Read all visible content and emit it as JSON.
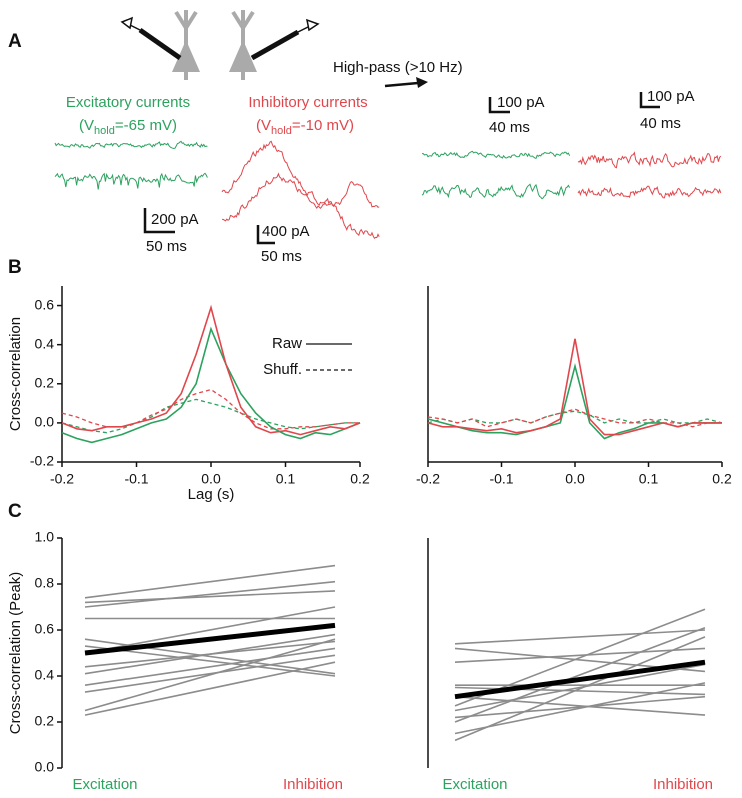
{
  "panel_labels": [
    "A",
    "B",
    "C"
  ],
  "panel_a": {
    "high_pass": "High-pass (>10 Hz)",
    "excitatory": {
      "title": "Excitatory currents",
      "prefix": "(V",
      "subscript": "hold",
      "suffix": "=-65 mV)"
    },
    "inhibitory": {
      "title": "Inhibitory currents",
      "prefix": "(V",
      "subscript": "hold",
      "suffix": "=-10 mV)"
    },
    "scale_bars": [
      {
        "amplitude": "200 pA",
        "time": "50 ms"
      },
      {
        "amplitude": "400 pA",
        "time": "50 ms"
      },
      {
        "amplitude": "100 pA",
        "time": "40 ms"
      },
      {
        "amplitude": "100 pA",
        "time": "40 ms"
      }
    ]
  },
  "chart_data": [
    {
      "type": "line",
      "y_label": "Cross-correlation",
      "x_label": "Lag (s)",
      "x": [
        -0.2,
        -0.18,
        -0.16,
        -0.14,
        -0.12,
        -0.1,
        -0.08,
        -0.06,
        -0.04,
        -0.02,
        0,
        0.02,
        0.04,
        0.06,
        0.08,
        0.1,
        0.12,
        0.14,
        0.16,
        0.18,
        0.2
      ],
      "xlim": [
        -0.2,
        0.2
      ],
      "xticks": [
        -0.2,
        -0.1,
        {
          "value": 0,
          "label": "0.0"
        },
        0.1,
        0.2
      ],
      "ylim": [
        -0.2,
        0.7
      ],
      "yticks": [
        -0.2,
        {
          "value": 0,
          "label": "0.0"
        },
        0.2,
        0.4,
        0.6
      ],
      "legend": [
        {
          "label": "Raw",
          "dash": false
        },
        {
          "label": "Shuff.",
          "dash": true
        }
      ],
      "series": [
        {
          "color": "#2ca25f",
          "dash": true,
          "values": [
            0.0,
            -0.02,
            -0.04,
            -0.05,
            -0.03,
            0.0,
            0.03,
            0.08,
            0.1,
            0.12,
            0.1,
            0.08,
            0.05,
            0.02,
            0.0,
            -0.02,
            -0.03,
            -0.02,
            -0.01,
            0.0,
            0.0
          ]
        },
        {
          "color": "#e0474c",
          "dash": true,
          "values": [
            0.05,
            0.03,
            0.0,
            -0.02,
            -0.02,
            0.0,
            0.04,
            0.07,
            0.12,
            0.15,
            0.17,
            0.12,
            0.05,
            0.0,
            -0.03,
            -0.03,
            -0.02,
            -0.02,
            -0.01,
            0.0,
            0.0
          ]
        },
        {
          "color": "#2ca25f",
          "dash": false,
          "values": [
            -0.05,
            -0.08,
            -0.1,
            -0.08,
            -0.06,
            -0.03,
            0.0,
            0.02,
            0.08,
            0.2,
            0.48,
            0.3,
            0.15,
            0.05,
            -0.02,
            -0.06,
            -0.08,
            -0.05,
            -0.06,
            -0.03,
            0.0
          ]
        },
        {
          "color": "#e0474c",
          "dash": false,
          "values": [
            0.0,
            -0.03,
            -0.04,
            -0.02,
            -0.02,
            0.0,
            0.02,
            0.05,
            0.15,
            0.35,
            0.59,
            0.3,
            0.08,
            -0.02,
            -0.05,
            -0.04,
            -0.06,
            -0.04,
            -0.02,
            -0.03,
            0.0
          ]
        }
      ]
    },
    {
      "type": "line",
      "x": [
        -0.2,
        -0.18,
        -0.16,
        -0.14,
        -0.12,
        -0.1,
        -0.08,
        -0.06,
        -0.04,
        -0.02,
        0,
        0.02,
        0.04,
        0.06,
        0.08,
        0.1,
        0.12,
        0.14,
        0.16,
        0.18,
        0.2
      ],
      "xlim": [
        -0.2,
        0.2
      ],
      "xticks": [
        -0.2,
        -0.1,
        {
          "value": 0,
          "label": "0.0"
        },
        0.1,
        0.2
      ],
      "ylim": [
        -0.2,
        0.7
      ],
      "series": [
        {
          "color": "#2ca25f",
          "dash": true,
          "values": [
            0.0,
            0.02,
            0.0,
            0.02,
            0.0,
            0.0,
            0.02,
            0.0,
            0.03,
            0.05,
            0.06,
            0.04,
            0.0,
            0.02,
            0.0,
            0.0,
            0.02,
            0.0,
            0.0,
            0.02,
            0.0
          ]
        },
        {
          "color": "#e0474c",
          "dash": true,
          "values": [
            0.03,
            0.02,
            0.0,
            0.02,
            -0.02,
            0.0,
            0.02,
            0.0,
            0.03,
            0.05,
            0.07,
            0.04,
            0.02,
            0.0,
            0.0,
            0.02,
            0.0,
            0.0,
            -0.02,
            0.0,
            0.0
          ]
        },
        {
          "color": "#2ca25f",
          "dash": false,
          "values": [
            0.02,
            0.0,
            -0.02,
            -0.04,
            -0.05,
            -0.05,
            -0.06,
            -0.04,
            -0.02,
            0.0,
            0.29,
            0.0,
            -0.08,
            -0.05,
            -0.03,
            0.0,
            0.0,
            -0.02,
            0.0,
            0.0,
            0.0
          ]
        },
        {
          "color": "#e0474c",
          "dash": false,
          "values": [
            0.0,
            -0.02,
            -0.02,
            -0.03,
            -0.04,
            -0.03,
            -0.05,
            -0.04,
            -0.02,
            0.02,
            0.43,
            0.02,
            -0.06,
            -0.06,
            -0.04,
            -0.02,
            0.0,
            -0.02,
            0.0,
            0.0,
            0.0
          ]
        }
      ]
    },
    {
      "type": "slope",
      "y_label": "Cross-correlation (Peak)",
      "categories": [
        "Excitation",
        "Inhibition"
      ],
      "category_colors": [
        "#2ca25f",
        "#e0474c"
      ],
      "ylim": [
        0,
        1
      ],
      "yticks": [
        {
          "value": 0,
          "label": "0.0"
        },
        0.2,
        0.4,
        0.6,
        0.8,
        {
          "value": 1,
          "label": "1.0"
        }
      ],
      "series": [
        {
          "color": "#8c8c8c",
          "values": [
            0.74,
            0.88
          ]
        },
        {
          "color": "#8c8c8c",
          "values": [
            0.72,
            0.77
          ]
        },
        {
          "color": "#8c8c8c",
          "values": [
            0.7,
            0.81
          ]
        },
        {
          "color": "#8c8c8c",
          "values": [
            0.65,
            0.65
          ]
        },
        {
          "color": "#8c8c8c",
          "values": [
            0.56,
            0.41
          ]
        },
        {
          "color": "#8c8c8c",
          "values": [
            0.53,
            0.4
          ]
        },
        {
          "color": "#8c8c8c",
          "values": [
            0.5,
            0.7
          ]
        },
        {
          "color": "#8c8c8c",
          "values": [
            0.44,
            0.55
          ]
        },
        {
          "color": "#8c8c8c",
          "values": [
            0.41,
            0.58
          ]
        },
        {
          "color": "#8c8c8c",
          "values": [
            0.36,
            0.52
          ]
        },
        {
          "color": "#8c8c8c",
          "values": [
            0.33,
            0.49
          ]
        },
        {
          "color": "#8c8c8c",
          "values": [
            0.25,
            0.56
          ]
        },
        {
          "color": "#8c8c8c",
          "values": [
            0.23,
            0.46
          ]
        },
        {
          "color": "#000000",
          "bold": true,
          "values": [
            0.5,
            0.62
          ]
        }
      ]
    },
    {
      "type": "slope",
      "categories": [
        "Excitation",
        "Inhibition"
      ],
      "category_colors": [
        "#2ca25f",
        "#e0474c"
      ],
      "ylim": [
        0,
        1
      ],
      "series": [
        {
          "color": "#8c8c8c",
          "values": [
            0.54,
            0.6
          ]
        },
        {
          "color": "#8c8c8c",
          "values": [
            0.52,
            0.42
          ]
        },
        {
          "color": "#8c8c8c",
          "values": [
            0.46,
            0.52
          ]
        },
        {
          "color": "#8c8c8c",
          "values": [
            0.36,
            0.36
          ]
        },
        {
          "color": "#8c8c8c",
          "values": [
            0.35,
            0.32
          ]
        },
        {
          "color": "#8c8c8c",
          "values": [
            0.31,
            0.23
          ]
        },
        {
          "color": "#8c8c8c",
          "values": [
            0.27,
            0.69
          ]
        },
        {
          "color": "#8c8c8c",
          "values": [
            0.25,
            0.45
          ]
        },
        {
          "color": "#8c8c8c",
          "values": [
            0.22,
            0.31
          ]
        },
        {
          "color": "#8c8c8c",
          "values": [
            0.2,
            0.61
          ]
        },
        {
          "color": "#8c8c8c",
          "values": [
            0.15,
            0.37
          ]
        },
        {
          "color": "#8c8c8c",
          "values": [
            0.12,
            0.57
          ]
        },
        {
          "color": "#000000",
          "bold": true,
          "values": [
            0.31,
            0.46
          ]
        }
      ]
    }
  ]
}
